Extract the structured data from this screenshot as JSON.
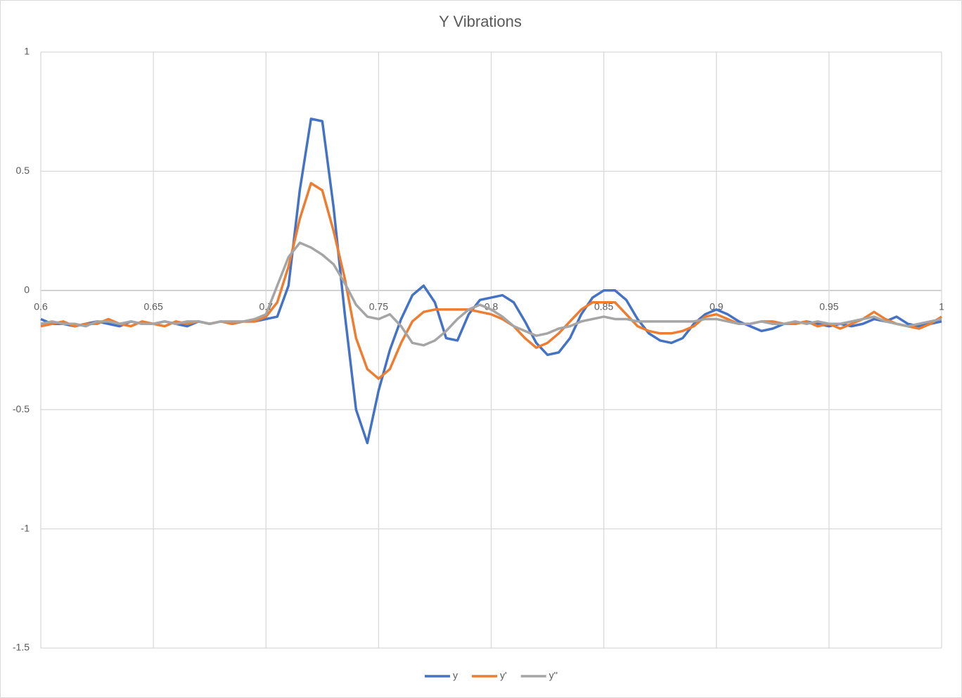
{
  "chart_data": {
    "type": "line",
    "title": "Y Vibrations",
    "x": [
      0.6,
      0.605,
      0.61,
      0.615,
      0.62,
      0.625,
      0.63,
      0.635,
      0.64,
      0.645,
      0.65,
      0.655,
      0.66,
      0.665,
      0.67,
      0.675,
      0.68,
      0.685,
      0.69,
      0.695,
      0.7,
      0.705,
      0.71,
      0.715,
      0.72,
      0.725,
      0.73,
      0.735,
      0.74,
      0.745,
      0.75,
      0.755,
      0.76,
      0.765,
      0.77,
      0.775,
      0.78,
      0.785,
      0.79,
      0.795,
      0.8,
      0.805,
      0.81,
      0.815,
      0.82,
      0.825,
      0.83,
      0.835,
      0.84,
      0.845,
      0.85,
      0.855,
      0.86,
      0.865,
      0.87,
      0.875,
      0.88,
      0.885,
      0.89,
      0.895,
      0.9,
      0.905,
      0.91,
      0.915,
      0.92,
      0.925,
      0.93,
      0.935,
      0.94,
      0.945,
      0.95,
      0.955,
      0.96,
      0.965,
      0.97,
      0.975,
      0.98,
      0.985,
      0.99,
      0.995,
      1.0
    ],
    "series": [
      {
        "name": "y",
        "color": "#4472c4",
        "values": [
          -0.12,
          -0.14,
          -0.14,
          -0.15,
          -0.14,
          -0.13,
          -0.14,
          -0.15,
          -0.13,
          -0.14,
          -0.14,
          -0.13,
          -0.14,
          -0.15,
          -0.13,
          -0.14,
          -0.13,
          -0.14,
          -0.13,
          -0.13,
          -0.12,
          -0.11,
          0.02,
          0.42,
          0.72,
          0.71,
          0.35,
          -0.1,
          -0.5,
          -0.64,
          -0.42,
          -0.25,
          -0.12,
          -0.02,
          0.02,
          -0.05,
          -0.2,
          -0.21,
          -0.1,
          -0.04,
          -0.03,
          -0.02,
          -0.05,
          -0.13,
          -0.22,
          -0.27,
          -0.26,
          -0.2,
          -0.1,
          -0.03,
          0.0,
          0.0,
          -0.04,
          -0.12,
          -0.18,
          -0.21,
          -0.22,
          -0.2,
          -0.14,
          -0.1,
          -0.08,
          -0.1,
          -0.13,
          -0.15,
          -0.17,
          -0.16,
          -0.14,
          -0.14,
          -0.13,
          -0.14,
          -0.15,
          -0.14,
          -0.15,
          -0.14,
          -0.12,
          -0.13,
          -0.11,
          -0.14,
          -0.15,
          -0.14,
          -0.13
        ]
      },
      {
        "name": "y'",
        "color": "#ed7d31",
        "values": [
          -0.15,
          -0.14,
          -0.13,
          -0.15,
          -0.14,
          -0.14,
          -0.12,
          -0.14,
          -0.15,
          -0.13,
          -0.14,
          -0.15,
          -0.13,
          -0.14,
          -0.13,
          -0.14,
          -0.13,
          -0.14,
          -0.13,
          -0.13,
          -0.11,
          -0.05,
          0.1,
          0.3,
          0.45,
          0.42,
          0.25,
          0.05,
          -0.2,
          -0.33,
          -0.37,
          -0.33,
          -0.22,
          -0.13,
          -0.09,
          -0.08,
          -0.08,
          -0.08,
          -0.08,
          -0.09,
          -0.1,
          -0.12,
          -0.15,
          -0.2,
          -0.24,
          -0.22,
          -0.18,
          -0.13,
          -0.08,
          -0.05,
          -0.05,
          -0.05,
          -0.1,
          -0.15,
          -0.17,
          -0.18,
          -0.18,
          -0.17,
          -0.15,
          -0.11,
          -0.1,
          -0.12,
          -0.14,
          -0.14,
          -0.13,
          -0.13,
          -0.14,
          -0.14,
          -0.13,
          -0.15,
          -0.14,
          -0.16,
          -0.14,
          -0.12,
          -0.09,
          -0.12,
          -0.14,
          -0.15,
          -0.16,
          -0.14,
          -0.11
        ]
      },
      {
        "name": "y''",
        "color": "#a5a5a5",
        "values": [
          -0.14,
          -0.13,
          -0.14,
          -0.14,
          -0.15,
          -0.13,
          -0.13,
          -0.14,
          -0.13,
          -0.14,
          -0.14,
          -0.13,
          -0.14,
          -0.13,
          -0.13,
          -0.14,
          -0.13,
          -0.13,
          -0.13,
          -0.12,
          -0.1,
          0.02,
          0.14,
          0.2,
          0.18,
          0.15,
          0.11,
          0.03,
          -0.06,
          -0.11,
          -0.12,
          -0.1,
          -0.15,
          -0.22,
          -0.23,
          -0.21,
          -0.17,
          -0.12,
          -0.08,
          -0.06,
          -0.08,
          -0.11,
          -0.15,
          -0.17,
          -0.19,
          -0.18,
          -0.16,
          -0.15,
          -0.13,
          -0.12,
          -0.11,
          -0.12,
          -0.12,
          -0.13,
          -0.13,
          -0.13,
          -0.13,
          -0.13,
          -0.13,
          -0.12,
          -0.12,
          -0.13,
          -0.14,
          -0.14,
          -0.13,
          -0.14,
          -0.14,
          -0.13,
          -0.14,
          -0.13,
          -0.14,
          -0.14,
          -0.13,
          -0.12,
          -0.11,
          -0.13,
          -0.14,
          -0.15,
          -0.14,
          -0.13,
          -0.12
        ]
      }
    ],
    "xlim": [
      0.6,
      1
    ],
    "ylim": [
      -1.5,
      1
    ],
    "xticks": [
      0.6,
      0.65,
      0.7,
      0.75,
      0.8,
      0.85,
      0.9,
      0.95,
      1
    ],
    "yticks": [
      -1.5,
      -1,
      -0.5,
      0,
      0.5,
      1
    ],
    "grid": true,
    "legend": "bottom"
  }
}
